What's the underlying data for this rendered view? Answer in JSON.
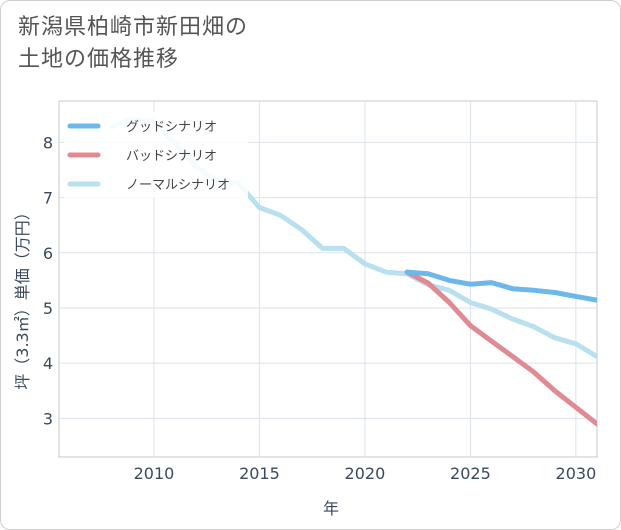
{
  "title_line1": "新潟県柏崎市新田畑の",
  "title_line2": "土地の価格推移",
  "chart_data": {
    "type": "line",
    "title": "新潟県柏崎市新田畑の土地の価格推移",
    "xlabel": "年",
    "ylabel": "坪（3.3㎡）単価（万円）",
    "xlim": [
      2005.5,
      2031
    ],
    "ylim": [
      2.3,
      8.75
    ],
    "x_ticks": [
      2010,
      2015,
      2020,
      2025,
      2030
    ],
    "y_ticks": [
      3,
      4,
      5,
      6,
      7,
      8
    ],
    "grid": true,
    "legend_position": "top-left",
    "series": [
      {
        "name": "グッドシナリオ",
        "color": "#6cb8ec",
        "x": [
          2022,
          2023,
          2024,
          2025,
          2026,
          2027,
          2028,
          2029,
          2030,
          2031
        ],
        "y": [
          5.65,
          5.62,
          5.5,
          5.43,
          5.46,
          5.35,
          5.32,
          5.28,
          5.21,
          5.14
        ]
      },
      {
        "name": "バッドシナリオ",
        "color": "#e08a92",
        "x": [
          2022,
          2023,
          2024,
          2025,
          2026,
          2027,
          2028,
          2029,
          2030,
          2031
        ],
        "y": [
          5.65,
          5.45,
          5.1,
          4.68,
          4.4,
          4.12,
          3.84,
          3.5,
          3.2,
          2.9
        ]
      },
      {
        "name": "ノーマルシナリオ",
        "color": "#b8e0ee",
        "x": [
          2008,
          2009,
          2010,
          2011,
          2012,
          2013,
          2014,
          2015,
          2016,
          2017,
          2018,
          2019,
          2020,
          2021,
          2022,
          2023,
          2024,
          2025,
          2026,
          2027,
          2028,
          2029,
          2030,
          2031
        ],
        "y": [
          8.28,
          8.42,
          8.38,
          7.98,
          7.56,
          7.3,
          7.26,
          6.82,
          6.68,
          6.42,
          6.08,
          6.08,
          5.8,
          5.65,
          5.62,
          5.42,
          5.32,
          5.1,
          4.98,
          4.8,
          4.66,
          4.46,
          4.35,
          4.12
        ]
      }
    ]
  }
}
